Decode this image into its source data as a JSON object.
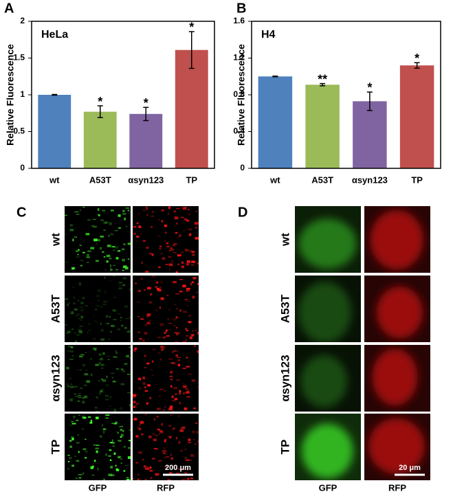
{
  "chart_data": [
    {
      "type": "bar",
      "panel_label": "A",
      "title": "HeLa",
      "y_label": "Relative Fluorescence",
      "categories": [
        "wt",
        "A53T",
        "αsyn123",
        "TP"
      ],
      "values": [
        1.0,
        0.77,
        0.74,
        1.61
      ],
      "errors": [
        0.005,
        0.08,
        0.09,
        0.25
      ],
      "significance": [
        null,
        "*",
        "*",
        "*"
      ],
      "colors": [
        "#4f81bd",
        "#9bbb59",
        "#8064a2",
        "#c0504d"
      ],
      "ylim": [
        0,
        2
      ],
      "yticks": [
        0,
        0.5,
        1,
        1.5,
        2
      ]
    },
    {
      "type": "bar",
      "panel_label": "B",
      "title": "H4",
      "y_label": "Relative Fluorescence",
      "categories": [
        "wt",
        "A53T",
        "αsyn123",
        "TP"
      ],
      "values": [
        1.0,
        0.91,
        0.73,
        1.12
      ],
      "errors": [
        0.004,
        0.012,
        0.1,
        0.03
      ],
      "significance": [
        null,
        "**",
        "*",
        "*"
      ],
      "colors": [
        "#4f81bd",
        "#9bbb59",
        "#8064a2",
        "#c0504d"
      ],
      "ylim": [
        0,
        1.6
      ],
      "yticks": [
        0,
        0.4,
        0.8,
        1.2,
        1.6
      ]
    }
  ],
  "micrographs": [
    {
      "panel_label": "C",
      "rows": [
        "wt",
        "A53T",
        "αsyn123",
        "TP"
      ],
      "columns": [
        "GFP",
        "RFP"
      ],
      "scale_bar": "200 μm"
    },
    {
      "panel_label": "D",
      "rows": [
        "wt",
        "A53T",
        "αsyn123",
        "TP"
      ],
      "columns": [
        "GFP",
        "RFP"
      ],
      "scale_bar": "20 μm"
    }
  ]
}
